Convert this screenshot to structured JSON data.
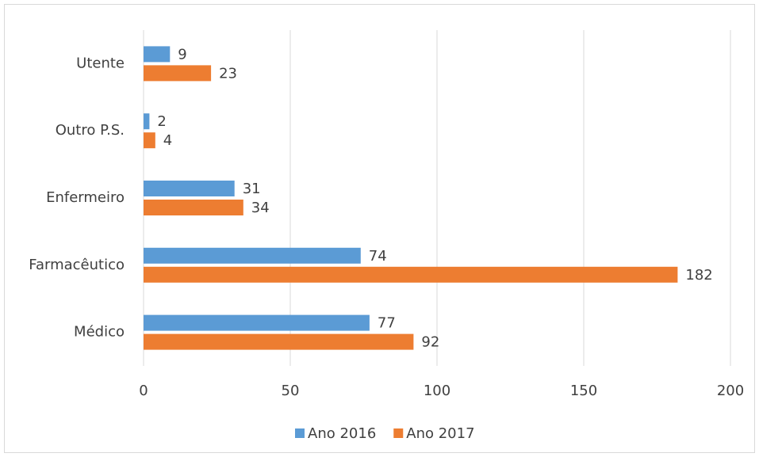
{
  "chart_data": {
    "type": "hbar",
    "categories": [
      "Utente",
      "Outro P.S.",
      "Enfermeiro",
      "Farmacêutico",
      "Médico"
    ],
    "series": [
      {
        "name": "Ano 2016",
        "color": "#5b9bd5",
        "values": [
          9,
          2,
          31,
          74,
          77
        ]
      },
      {
        "name": "Ano 2017",
        "color": "#ed7d31",
        "values": [
          23,
          4,
          34,
          182,
          92
        ]
      }
    ],
    "xlim": [
      0,
      200
    ],
    "xticks": [
      0,
      50,
      100,
      150,
      200
    ],
    "grid": true,
    "legend": "bottom"
  }
}
